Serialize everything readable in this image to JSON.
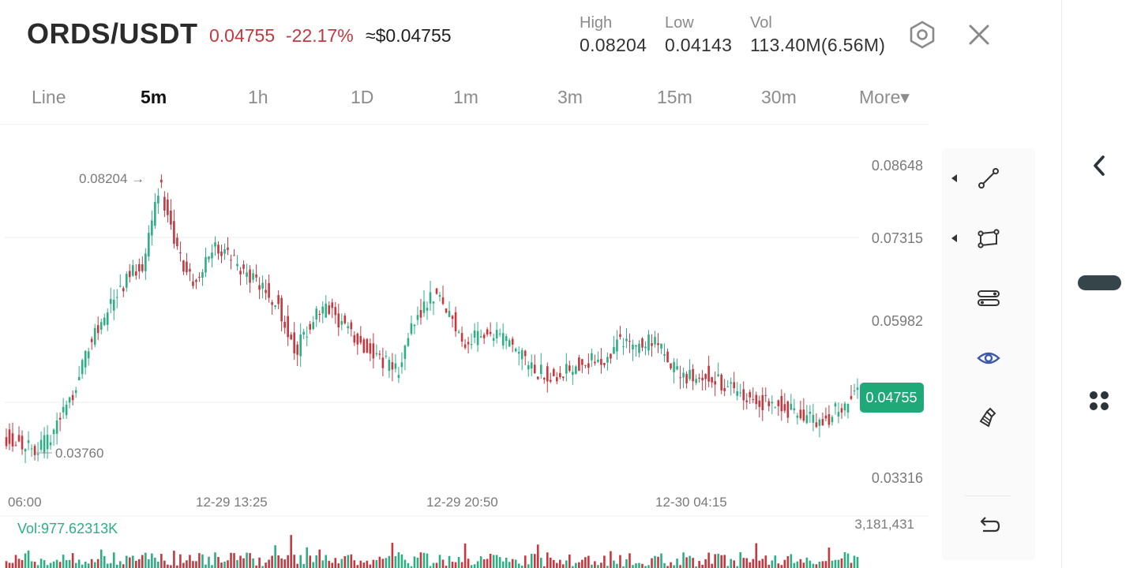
{
  "header": {
    "pair": "ORDS/USDT",
    "last_price": "0.04755",
    "change": "-22.17%",
    "usd_price": "≈$0.04755",
    "stats": [
      {
        "label": "High",
        "value": "0.08204"
      },
      {
        "label": "Low",
        "value": "0.04143"
      },
      {
        "label": "Vol",
        "value": "113.40M(6.56M)"
      }
    ],
    "settings_icon": "hexagon-settings-icon",
    "close_icon": "close-icon"
  },
  "timeframes": [
    "Line",
    "5m",
    "1h",
    "1D",
    "1m",
    "3m",
    "15m",
    "30m",
    "More▾"
  ],
  "active_timeframe": "5m",
  "toolbar": {
    "tools": [
      "trendline-icon",
      "rectangle-icon",
      "parallel-channel-icon",
      "eye-icon",
      "eraser-icon"
    ],
    "undo_icon": "undo-icon"
  },
  "rail": {
    "back_icon": "chevron-left-icon",
    "menu_icon": "grid-dots-icon"
  },
  "colors": {
    "up": "#2dae84",
    "down": "#c5383f",
    "accent": "#3d5aa8",
    "last_price_badge": "#1fa878"
  },
  "chart_data": {
    "type": "candlestick",
    "price_axis_ticks": [
      "0.08648",
      "0.07315",
      "0.05982",
      "0.04755",
      "0.03316"
    ],
    "time_axis_ticks": [
      "06:00",
      "12-29 13:25",
      "12-29 20:50",
      "12-30 04:15"
    ],
    "max_marker": "0.08204 →",
    "min_marker": "0.03760",
    "last_price": "0.04755",
    "volume_label": "Vol:977.62313K",
    "volume_max_label": "3,181,431",
    "ylim": [
      0.0322,
      0.0874
    ],
    "close_path": [
      [
        0,
        0.041
      ],
      [
        4,
        0.0392
      ],
      [
        6,
        0.043
      ],
      [
        8,
        0.0485
      ],
      [
        10,
        0.056
      ],
      [
        12,
        0.0605
      ],
      [
        14,
        0.065
      ],
      [
        16,
        0.0675
      ],
      [
        18,
        0.08
      ],
      [
        20,
        0.069
      ],
      [
        22,
        0.0645
      ],
      [
        24,
        0.07
      ],
      [
        26,
        0.069
      ],
      [
        28,
        0.066
      ],
      [
        30,
        0.064
      ],
      [
        32,
        0.061
      ],
      [
        34,
        0.054
      ],
      [
        36,
        0.059
      ],
      [
        38,
        0.0605
      ],
      [
        40,
        0.0575
      ],
      [
        42,
        0.055
      ],
      [
        44,
        0.053
      ],
      [
        46,
        0.051
      ],
      [
        48,
        0.059
      ],
      [
        50,
        0.063
      ],
      [
        52,
        0.06
      ],
      [
        54,
        0.055
      ],
      [
        56,
        0.0575
      ],
      [
        58,
        0.056
      ],
      [
        60,
        0.054
      ],
      [
        62,
        0.051
      ],
      [
        64,
        0.0505
      ],
      [
        66,
        0.0515
      ],
      [
        68,
        0.053
      ],
      [
        70,
        0.052
      ],
      [
        72,
        0.056
      ],
      [
        74,
        0.055
      ],
      [
        76,
        0.056
      ],
      [
        78,
        0.052
      ],
      [
        80,
        0.05
      ],
      [
        82,
        0.051
      ],
      [
        84,
        0.049
      ],
      [
        86,
        0.0478
      ],
      [
        88,
        0.046
      ],
      [
        90,
        0.0468
      ],
      [
        92,
        0.045
      ],
      [
        94,
        0.044
      ],
      [
        96,
        0.0435
      ],
      [
        98,
        0.0455
      ],
      [
        100,
        0.0478
      ]
    ]
  }
}
